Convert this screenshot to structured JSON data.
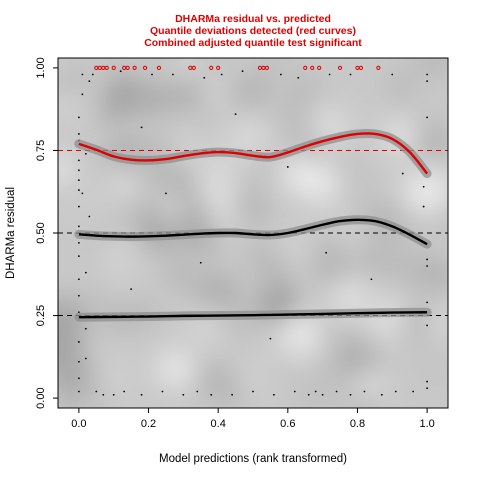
{
  "chart_data": {
    "type": "scatter",
    "title": [
      "DHARMa residual vs. predicted",
      "Quantile deviations detected (red curves)",
      "Combined adjusted quantile test significant"
    ],
    "xlabel": "Model predictions (rank transformed)",
    "ylabel": "DHARMa residual",
    "xlim": [
      -0.06,
      1.06
    ],
    "ylim": [
      -0.03,
      1.03
    ],
    "xticks": [
      0.0,
      0.2,
      0.4,
      0.6,
      0.8,
      1.0
    ],
    "xtick_labels": [
      "0.0",
      "0.2",
      "0.4",
      "0.6",
      "0.8",
      "1.0"
    ],
    "yticks": [
      0.0,
      0.25,
      0.5,
      0.75,
      1.0
    ],
    "ytick_labels": [
      "0.00",
      "0.25",
      "0.50",
      "0.75",
      "1.00"
    ],
    "grid": false,
    "reference_lines": [
      {
        "y": 0.25,
        "color": "#000000",
        "style": "dashed"
      },
      {
        "y": 0.5,
        "color": "#000000",
        "style": "dashed"
      },
      {
        "y": 0.75,
        "color": "#e00000",
        "style": "dashed"
      }
    ],
    "quantile_curves": [
      {
        "quantile": 0.25,
        "color": "#000000",
        "x": [
          0.0,
          0.1,
          0.2,
          0.3,
          0.4,
          0.5,
          0.6,
          0.7,
          0.8,
          0.9,
          1.0
        ],
        "y": [
          0.245,
          0.246,
          0.247,
          0.249,
          0.25,
          0.251,
          0.253,
          0.255,
          0.257,
          0.259,
          0.26
        ]
      },
      {
        "quantile": 0.5,
        "color": "#000000",
        "x": [
          0.0,
          0.05,
          0.1,
          0.15,
          0.2,
          0.25,
          0.3,
          0.35,
          0.4,
          0.45,
          0.5,
          0.55,
          0.6,
          0.65,
          0.7,
          0.75,
          0.8,
          0.85,
          0.9,
          0.95,
          1.0
        ],
        "y": [
          0.496,
          0.492,
          0.49,
          0.489,
          0.49,
          0.492,
          0.495,
          0.498,
          0.5,
          0.5,
          0.496,
          0.494,
          0.5,
          0.512,
          0.525,
          0.536,
          0.54,
          0.536,
          0.52,
          0.495,
          0.466
        ]
      },
      {
        "quantile": 0.75,
        "color": "#e00000",
        "x": [
          0.0,
          0.05,
          0.1,
          0.15,
          0.2,
          0.25,
          0.3,
          0.35,
          0.4,
          0.45,
          0.5,
          0.55,
          0.6,
          0.65,
          0.7,
          0.75,
          0.8,
          0.85,
          0.9,
          0.95,
          1.0
        ],
        "y": [
          0.77,
          0.752,
          0.732,
          0.722,
          0.72,
          0.724,
          0.733,
          0.741,
          0.745,
          0.742,
          0.734,
          0.73,
          0.744,
          0.762,
          0.778,
          0.791,
          0.8,
          0.8,
          0.785,
          0.745,
          0.68
        ]
      }
    ],
    "outliers": {
      "color": "#e00000",
      "y": 1.0,
      "x": [
        0.05,
        0.06,
        0.07,
        0.08,
        0.1,
        0.13,
        0.14,
        0.16,
        0.19,
        0.23,
        0.32,
        0.33,
        0.38,
        0.4,
        0.52,
        0.53,
        0.54,
        0.65,
        0.67,
        0.69,
        0.75,
        0.8,
        0.81,
        0.86
      ]
    },
    "residual_points": [
      [
        0.0,
        0.02
      ],
      [
        0.0,
        0.06
      ],
      [
        0.0,
        0.11
      ],
      [
        0.0,
        0.17
      ],
      [
        0.0,
        0.26
      ],
      [
        0.0,
        0.31
      ],
      [
        0.0,
        0.36
      ],
      [
        0.0,
        0.43
      ],
      [
        0.0,
        0.47
      ],
      [
        0.0,
        0.52
      ],
      [
        0.0,
        0.58
      ],
      [
        0.0,
        0.63
      ],
      [
        0.0,
        0.66
      ],
      [
        0.0,
        0.69
      ],
      [
        0.0,
        0.72
      ],
      [
        0.0,
        0.78
      ],
      [
        0.0,
        0.8
      ],
      [
        0.0,
        0.85
      ],
      [
        0.01,
        0.92
      ],
      [
        0.01,
        0.98
      ],
      [
        0.02,
        0.12
      ],
      [
        0.02,
        0.21
      ],
      [
        0.02,
        0.38
      ],
      [
        0.03,
        0.55
      ],
      [
        0.01,
        0.62
      ],
      [
        0.02,
        0.74
      ],
      [
        0.03,
        0.96
      ],
      [
        0.05,
        0.02
      ],
      [
        0.07,
        0.01
      ],
      [
        0.1,
        0.01
      ],
      [
        0.13,
        0.02
      ],
      [
        0.18,
        0.01
      ],
      [
        0.24,
        0.02
      ],
      [
        0.3,
        0.01
      ],
      [
        0.34,
        0.02
      ],
      [
        0.38,
        0.01
      ],
      [
        0.44,
        0.01
      ],
      [
        0.5,
        0.02
      ],
      [
        0.56,
        0.01
      ],
      [
        0.62,
        0.02
      ],
      [
        0.66,
        0.01
      ],
      [
        0.68,
        0.02
      ],
      [
        0.7,
        0.01
      ],
      [
        0.74,
        0.02
      ],
      [
        0.78,
        0.01
      ],
      [
        0.82,
        0.02
      ],
      [
        0.87,
        0.01
      ],
      [
        0.91,
        0.02
      ],
      [
        0.96,
        0.02
      ],
      [
        0.04,
        0.98
      ],
      [
        0.12,
        0.99
      ],
      [
        0.21,
        0.98
      ],
      [
        0.27,
        0.98
      ],
      [
        0.36,
        0.97
      ],
      [
        0.41,
        0.98
      ],
      [
        0.47,
        0.99
      ],
      [
        0.58,
        0.98
      ],
      [
        0.63,
        0.97
      ],
      [
        0.72,
        0.98
      ],
      [
        0.78,
        0.98
      ],
      [
        0.9,
        0.98
      ],
      [
        1.0,
        0.03
      ],
      [
        1.0,
        0.05
      ],
      [
        1.0,
        0.22
      ],
      [
        1.0,
        0.29
      ],
      [
        1.0,
        0.4
      ],
      [
        1.0,
        0.42
      ],
      [
        1.0,
        0.85
      ],
      [
        1.0,
        0.96
      ],
      [
        1.0,
        0.98
      ],
      [
        0.99,
        0.58
      ],
      [
        0.99,
        0.64
      ],
      [
        0.15,
        0.33
      ],
      [
        0.25,
        0.62
      ],
      [
        0.35,
        0.41
      ],
      [
        0.45,
        0.86
      ],
      [
        0.55,
        0.18
      ],
      [
        0.6,
        0.7
      ],
      [
        0.71,
        0.44
      ],
      [
        0.84,
        0.36
      ],
      [
        0.93,
        0.68
      ],
      [
        0.18,
        0.82
      ]
    ]
  }
}
